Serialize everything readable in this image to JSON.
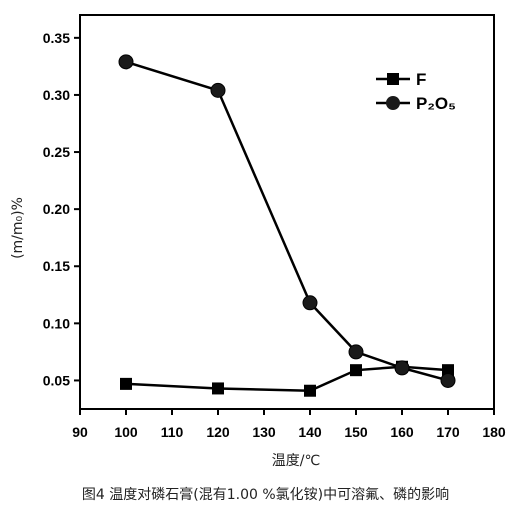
{
  "chart_data": {
    "type": "line",
    "xlabel": "温度/℃",
    "ylabel": "(m/m₀)%",
    "xlim": [
      90,
      180
    ],
    "ylim": [
      0.025,
      0.37
    ],
    "xticks": [
      90,
      100,
      110,
      120,
      130,
      140,
      150,
      160,
      170,
      180
    ],
    "yticks": [
      0.05,
      0.1,
      0.15,
      0.2,
      0.25,
      0.3,
      0.35
    ],
    "legend_position": "top-right",
    "series": [
      {
        "name": "F",
        "marker": "square",
        "color": "#000000",
        "x": [
          100,
          120,
          140,
          150,
          160,
          170
        ],
        "y": [
          0.047,
          0.043,
          0.041,
          0.059,
          0.062,
          0.059
        ]
      },
      {
        "name": "P₂O₅",
        "marker": "circle",
        "color": "#000000",
        "x": [
          100,
          120,
          140,
          150,
          160,
          170
        ],
        "y": [
          0.329,
          0.304,
          0.118,
          0.075,
          0.061,
          0.05
        ]
      }
    ]
  },
  "caption": "图4 温度对磷石膏(混有1.00 %氯化铵)中可溶氟、磷的影响"
}
